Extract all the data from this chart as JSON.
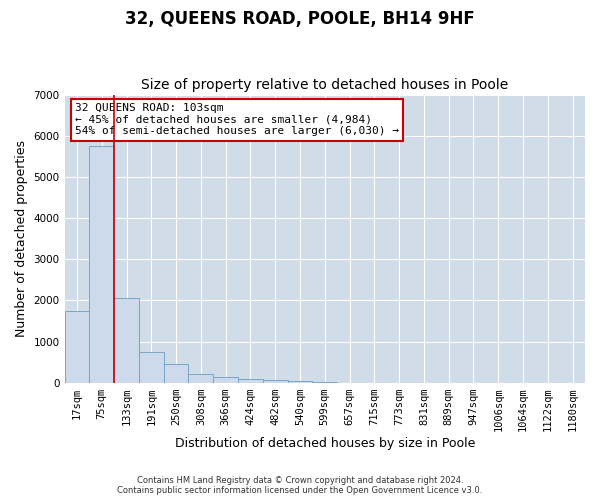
{
  "title": "32, QUEENS ROAD, POOLE, BH14 9HF",
  "subtitle": "Size of property relative to detached houses in Poole",
  "xlabel": "Distribution of detached houses by size in Poole",
  "ylabel": "Number of detached properties",
  "categories": [
    "17sqm",
    "75sqm",
    "133sqm",
    "191sqm",
    "250sqm",
    "308sqm",
    "366sqm",
    "424sqm",
    "482sqm",
    "540sqm",
    "599sqm",
    "657sqm",
    "715sqm",
    "773sqm",
    "831sqm",
    "889sqm",
    "947sqm",
    "1006sqm",
    "1064sqm",
    "1122sqm",
    "1180sqm"
  ],
  "values": [
    1750,
    5750,
    2050,
    750,
    450,
    220,
    150,
    100,
    70,
    50,
    30,
    0,
    0,
    0,
    0,
    0,
    0,
    0,
    0,
    0,
    0
  ],
  "bar_color": "#cddaeb",
  "bar_edge_color": "#7aa4c9",
  "property_line_x": 1.5,
  "annotation_line1": "32 QUEENS ROAD: 103sqm",
  "annotation_line2": "← 45% of detached houses are smaller (4,984)",
  "annotation_line3": "54% of semi-detached houses are larger (6,030) →",
  "annotation_box_color": "#ffffff",
  "annotation_box_edge": "#cc0000",
  "red_line_color": "#cc0000",
  "footer_line1": "Contains HM Land Registry data © Crown copyright and database right 2024.",
  "footer_line2": "Contains public sector information licensed under the Open Government Licence v3.0.",
  "ylim": [
    0,
    7000
  ],
  "yticks": [
    0,
    1000,
    2000,
    3000,
    4000,
    5000,
    6000,
    7000
  ],
  "background_color": "#ffffff",
  "grid_color": "#d0dce8",
  "title_fontsize": 12,
  "subtitle_fontsize": 10,
  "axis_label_fontsize": 9,
  "tick_fontsize": 7.5
}
